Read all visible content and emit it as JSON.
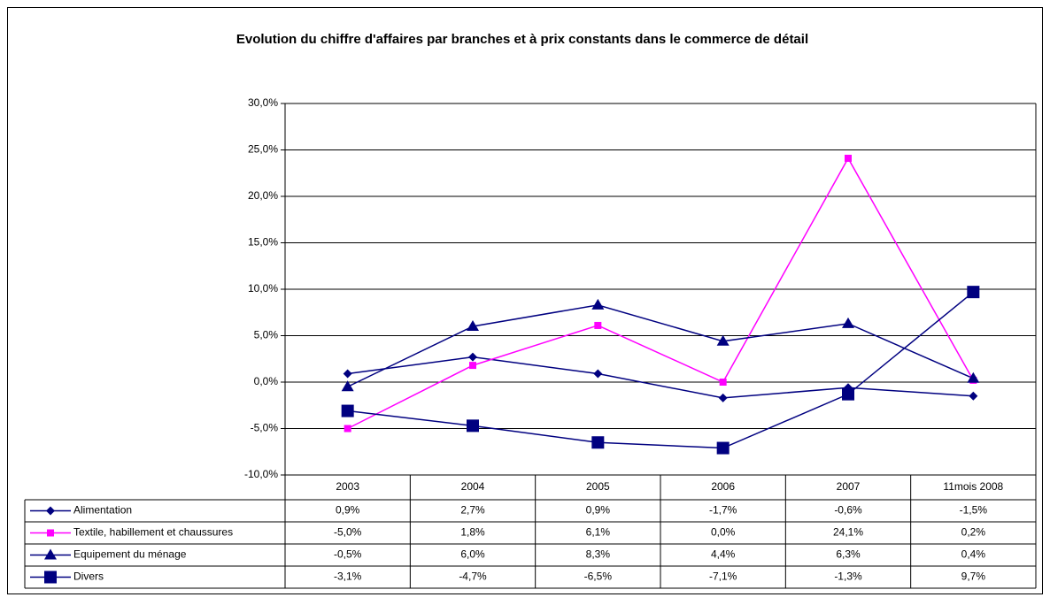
{
  "chart_data": {
    "type": "line",
    "title": "Evolution du chiffre d'affaires par branches et à prix constants dans le commerce de détail",
    "categories": [
      "2003",
      "2004",
      "2005",
      "2006",
      "2007",
      "11mois 2008"
    ],
    "ylim": [
      -10,
      30
    ],
    "yticks": [
      {
        "value": -10,
        "label": "-10,0%"
      },
      {
        "value": -5,
        "label": "-5,0%"
      },
      {
        "value": 0,
        "label": "0,0%"
      },
      {
        "value": 5,
        "label": "5,0%"
      },
      {
        "value": 10,
        "label": "10,0%"
      },
      {
        "value": 15,
        "label": "15,0%"
      },
      {
        "value": 20,
        "label": "20,0%"
      },
      {
        "value": 25,
        "label": "25,0%"
      },
      {
        "value": 30,
        "label": "30,0%"
      }
    ],
    "grid": true,
    "series": [
      {
        "name": "Alimentation",
        "color": "#000080",
        "marker": "diamond",
        "values": [
          0.9,
          2.7,
          0.9,
          -1.7,
          -0.6,
          -1.5
        ],
        "value_labels": [
          "0,9%",
          "2,7%",
          "0,9%",
          "-1,7%",
          "-0,6%",
          "-1,5%"
        ]
      },
      {
        "name": "Textile, habillement et chaussures",
        "color": "#ff00ff",
        "marker": "square",
        "values": [
          -5.0,
          1.8,
          6.1,
          0.0,
          24.1,
          0.2
        ],
        "value_labels": [
          "-5,0%",
          "1,8%",
          "6,1%",
          "0,0%",
          "24,1%",
          "0,2%"
        ]
      },
      {
        "name": "Equipement du ménage",
        "color": "#000080",
        "marker": "triangle",
        "values": [
          -0.5,
          6.0,
          8.3,
          4.4,
          6.3,
          0.4
        ],
        "value_labels": [
          "-0,5%",
          "6,0%",
          "8,3%",
          "4,4%",
          "6,3%",
          "0,4%"
        ]
      },
      {
        "name": "Divers",
        "color": "#000080",
        "marker": "bigsquare",
        "values": [
          -3.1,
          -4.7,
          -6.5,
          -7.1,
          -1.3,
          9.7
        ],
        "value_labels": [
          "-3,1%",
          "-4,7%",
          "-6,5%",
          "-7,1%",
          "-1,3%",
          "9,7%"
        ]
      }
    ]
  }
}
